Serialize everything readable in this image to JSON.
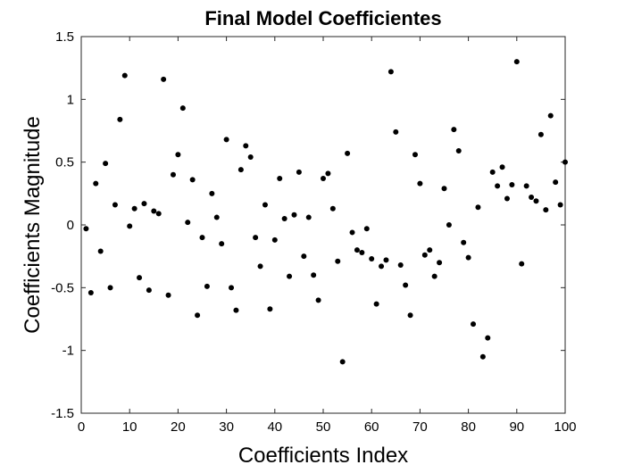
{
  "chart_data": {
    "type": "scatter",
    "title": "Final Model Coefficientes",
    "xlabel": "Coefficients Index",
    "ylabel": "Coefficients Magnitude",
    "xlim": [
      0,
      100
    ],
    "ylim": [
      -1.5,
      1.5
    ],
    "xticks": [
      0,
      10,
      20,
      30,
      40,
      50,
      60,
      70,
      80,
      90,
      100
    ],
    "xtick_labels": [
      "0",
      "10",
      "20",
      "30",
      "40",
      "50",
      "60",
      "70",
      "80",
      "90",
      "100"
    ],
    "yticks": [
      -1.5,
      -1,
      -0.5,
      0,
      0.5,
      1,
      1.5
    ],
    "ytick_labels": [
      "-1.5",
      "-1",
      "-0.5",
      "0",
      "0.5",
      "1",
      "1.5"
    ],
    "grid": false,
    "marker_color": "#000000",
    "series": [
      {
        "x": [
          1,
          2,
          3,
          4,
          5,
          6,
          7,
          8,
          9,
          10,
          11,
          12,
          13,
          14,
          15,
          16,
          17,
          18,
          19,
          20,
          21,
          22,
          23,
          24,
          25,
          26,
          27,
          28,
          29,
          30,
          31,
          32,
          33,
          34,
          35,
          36,
          37,
          38,
          39,
          40,
          41,
          42,
          43,
          44,
          45,
          46,
          47,
          48,
          49,
          50,
          51,
          52,
          53,
          54,
          55,
          56,
          57,
          58,
          59,
          60,
          61,
          62,
          63,
          64,
          65,
          66,
          67,
          68,
          69,
          70,
          71,
          72,
          73,
          74,
          75,
          76,
          77,
          78,
          79,
          80,
          81,
          82,
          83,
          84,
          85,
          86,
          87,
          88,
          89,
          90,
          91,
          92,
          93,
          94,
          95,
          96,
          97,
          98,
          99,
          100
        ],
        "y": [
          -0.03,
          -0.54,
          0.33,
          -0.21,
          0.49,
          -0.5,
          0.16,
          0.84,
          1.19,
          -0.01,
          0.13,
          -0.42,
          0.17,
          -0.52,
          0.11,
          0.09,
          1.16,
          -0.56,
          0.4,
          0.56,
          0.93,
          0.02,
          0.36,
          -0.72,
          -0.1,
          -0.49,
          0.25,
          0.06,
          -0.15,
          0.68,
          -0.5,
          -0.68,
          0.44,
          0.63,
          0.54,
          -0.1,
          -0.33,
          0.16,
          -0.67,
          -0.12,
          0.37,
          0.05,
          -0.41,
          0.08,
          0.42,
          -0.25,
          0.06,
          -0.4,
          -0.6,
          0.37,
          0.41,
          0.13,
          -0.29,
          -1.09,
          0.57,
          -0.06,
          -0.2,
          -0.22,
          -0.03,
          -0.27,
          -0.63,
          -0.33,
          -0.28,
          1.22,
          0.74,
          -0.32,
          -0.48,
          -0.72,
          0.56,
          0.33,
          -0.24,
          -0.2,
          -0.41,
          -0.3,
          0.29,
          0.0,
          0.76,
          0.59,
          -0.14,
          -0.26,
          -0.79,
          0.14,
          -1.05,
          -0.9,
          0.42,
          0.31,
          0.46,
          0.21,
          0.32,
          1.3,
          -0.31,
          0.31,
          0.22,
          0.19,
          0.72,
          0.12,
          0.87,
          0.34,
          0.16,
          0.5
        ]
      }
    ]
  }
}
